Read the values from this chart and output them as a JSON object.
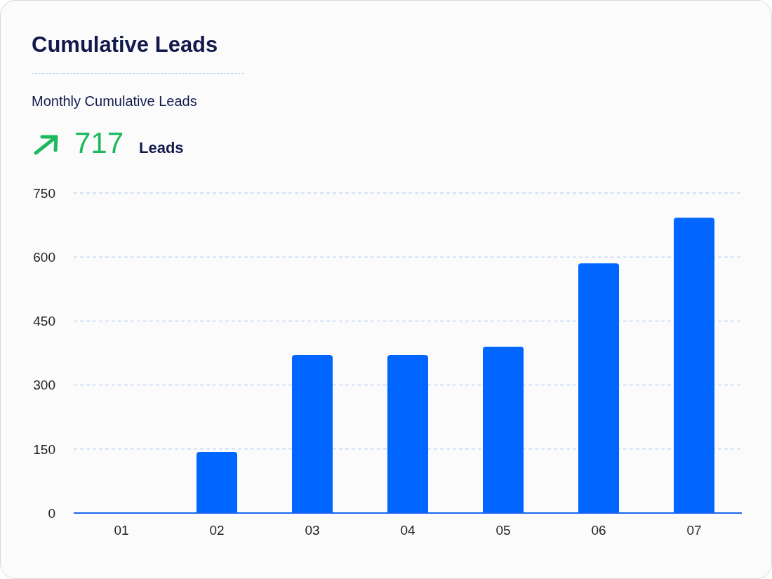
{
  "chart_data": {
    "type": "bar",
    "title": "Cumulative Leads",
    "subtitle": "Monthly Cumulative Leads",
    "annotations": [
      "717",
      "Leads"
    ],
    "categories": [
      "01",
      "02",
      "03",
      "04",
      "05",
      "06",
      "07"
    ],
    "values": [
      0,
      143,
      370,
      370,
      390,
      585,
      692
    ],
    "color": "#0066ff",
    "ylim": [
      0,
      750
    ],
    "yticks": [
      0,
      150,
      300,
      450,
      600,
      750
    ],
    "grid": "y"
  }
}
